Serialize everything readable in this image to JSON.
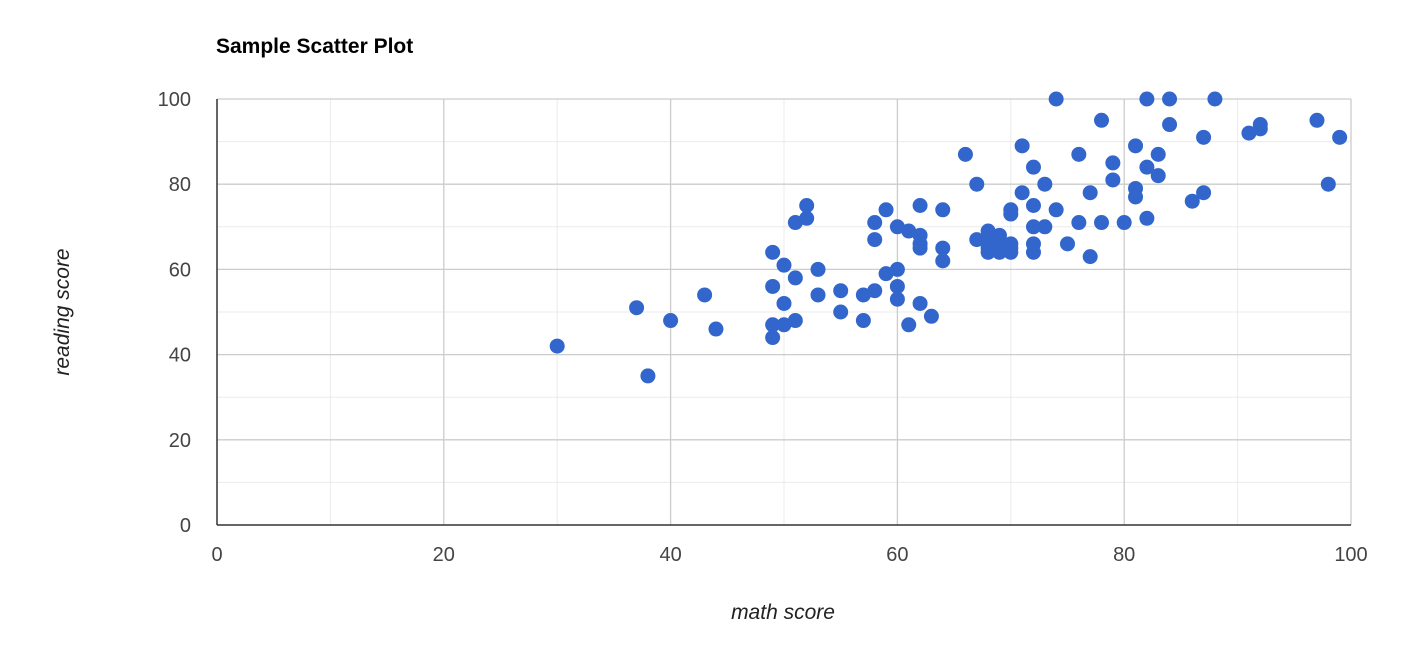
{
  "chart_data": {
    "type": "scatter",
    "title": "Sample Scatter Plot",
    "xlabel": "math score",
    "ylabel": "reading score",
    "xlim": [
      0,
      100
    ],
    "ylim": [
      0,
      100
    ],
    "x_ticks": [
      "0",
      "20",
      "40",
      "60",
      "80",
      "100"
    ],
    "y_ticks": [
      "0",
      "20",
      "40",
      "60",
      "80",
      "100"
    ],
    "grid": true,
    "legend": "none",
    "marker_color": "#3366cc",
    "series": [
      {
        "points": [
          [
            30,
            42
          ],
          [
            37,
            51
          ],
          [
            38,
            35
          ],
          [
            40,
            48
          ],
          [
            43,
            54
          ],
          [
            44,
            46
          ],
          [
            49,
            64
          ],
          [
            49,
            56
          ],
          [
            49,
            47
          ],
          [
            49,
            44
          ],
          [
            50,
            61
          ],
          [
            50,
            52
          ],
          [
            50,
            47
          ],
          [
            51,
            71
          ],
          [
            51,
            58
          ],
          [
            51,
            48
          ],
          [
            52,
            75
          ],
          [
            52,
            72
          ],
          [
            53,
            60
          ],
          [
            53,
            54
          ],
          [
            55,
            55
          ],
          [
            55,
            50
          ],
          [
            57,
            54
          ],
          [
            57,
            48
          ],
          [
            58,
            71
          ],
          [
            58,
            67
          ],
          [
            58,
            55
          ],
          [
            59,
            74
          ],
          [
            59,
            59
          ],
          [
            60,
            70
          ],
          [
            60,
            60
          ],
          [
            60,
            56
          ],
          [
            60,
            53
          ],
          [
            61,
            69
          ],
          [
            61,
            47
          ],
          [
            62,
            75
          ],
          [
            62,
            68
          ],
          [
            62,
            66
          ],
          [
            62,
            65
          ],
          [
            62,
            52
          ],
          [
            63,
            49
          ],
          [
            64,
            74
          ],
          [
            64,
            65
          ],
          [
            64,
            62
          ],
          [
            66,
            87
          ],
          [
            67,
            80
          ],
          [
            67,
            67
          ],
          [
            68,
            69
          ],
          [
            68,
            67
          ],
          [
            68,
            66
          ],
          [
            68,
            65
          ],
          [
            68,
            64
          ],
          [
            69,
            68
          ],
          [
            69,
            67
          ],
          [
            69,
            66
          ],
          [
            69,
            65
          ],
          [
            69,
            64
          ],
          [
            70,
            74
          ],
          [
            70,
            73
          ],
          [
            70,
            66
          ],
          [
            70,
            65
          ],
          [
            70,
            64
          ],
          [
            71,
            89
          ],
          [
            71,
            78
          ],
          [
            72,
            84
          ],
          [
            72,
            75
          ],
          [
            72,
            70
          ],
          [
            72,
            66
          ],
          [
            72,
            64
          ],
          [
            73,
            80
          ],
          [
            73,
            70
          ],
          [
            74,
            100
          ],
          [
            74,
            74
          ],
          [
            75,
            66
          ],
          [
            76,
            87
          ],
          [
            76,
            71
          ],
          [
            77,
            78
          ],
          [
            77,
            63
          ],
          [
            78,
            95
          ],
          [
            78,
            71
          ],
          [
            79,
            85
          ],
          [
            79,
            81
          ],
          [
            80,
            71
          ],
          [
            81,
            89
          ],
          [
            81,
            79
          ],
          [
            81,
            77
          ],
          [
            82,
            100
          ],
          [
            82,
            84
          ],
          [
            82,
            72
          ],
          [
            83,
            87
          ],
          [
            83,
            82
          ],
          [
            84,
            100
          ],
          [
            84,
            94
          ],
          [
            86,
            76
          ],
          [
            87,
            91
          ],
          [
            87,
            78
          ],
          [
            88,
            100
          ],
          [
            91,
            92
          ],
          [
            92,
            94
          ],
          [
            92,
            93
          ],
          [
            97,
            95
          ],
          [
            98,
            80
          ],
          [
            99,
            91
          ]
        ]
      }
    ]
  }
}
